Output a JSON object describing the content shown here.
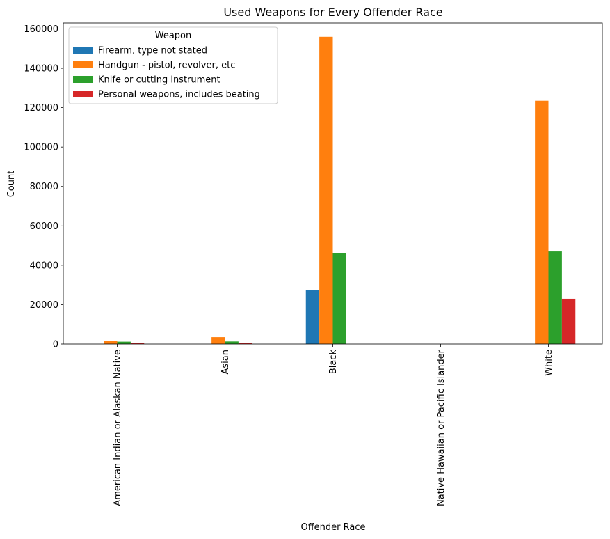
{
  "chart_data": {
    "type": "bar",
    "title": "Used Weapons for Every Offender Race",
    "xlabel": "Offender Race",
    "ylabel": "Count",
    "categories": [
      "American Indian or Alaskan Native",
      "Asian",
      "Black",
      "Native Hawaiian or Pacific Islander",
      "White"
    ],
    "ylim": [
      0,
      163000
    ],
    "yticks": [
      0,
      20000,
      40000,
      60000,
      80000,
      100000,
      120000,
      140000,
      160000
    ],
    "grid": false,
    "legend": {
      "title": "Weapon",
      "placement": "top-left"
    },
    "series": [
      {
        "name": "Firearm, type not stated",
        "color": "#1f77b4",
        "values": [
          0,
          0,
          27500,
          0,
          0
        ]
      },
      {
        "name": "Handgun - pistol, revolver, etc",
        "color": "#ff7f0e",
        "values": [
          1500,
          3500,
          156000,
          0,
          123500
        ]
      },
      {
        "name": "Knife or cutting instrument",
        "color": "#2ca02c",
        "values": [
          1200,
          1300,
          46000,
          0,
          47000
        ]
      },
      {
        "name": "Personal weapons, includes beating",
        "color": "#d62728",
        "values": [
          700,
          700,
          0,
          0,
          23000
        ]
      }
    ]
  }
}
